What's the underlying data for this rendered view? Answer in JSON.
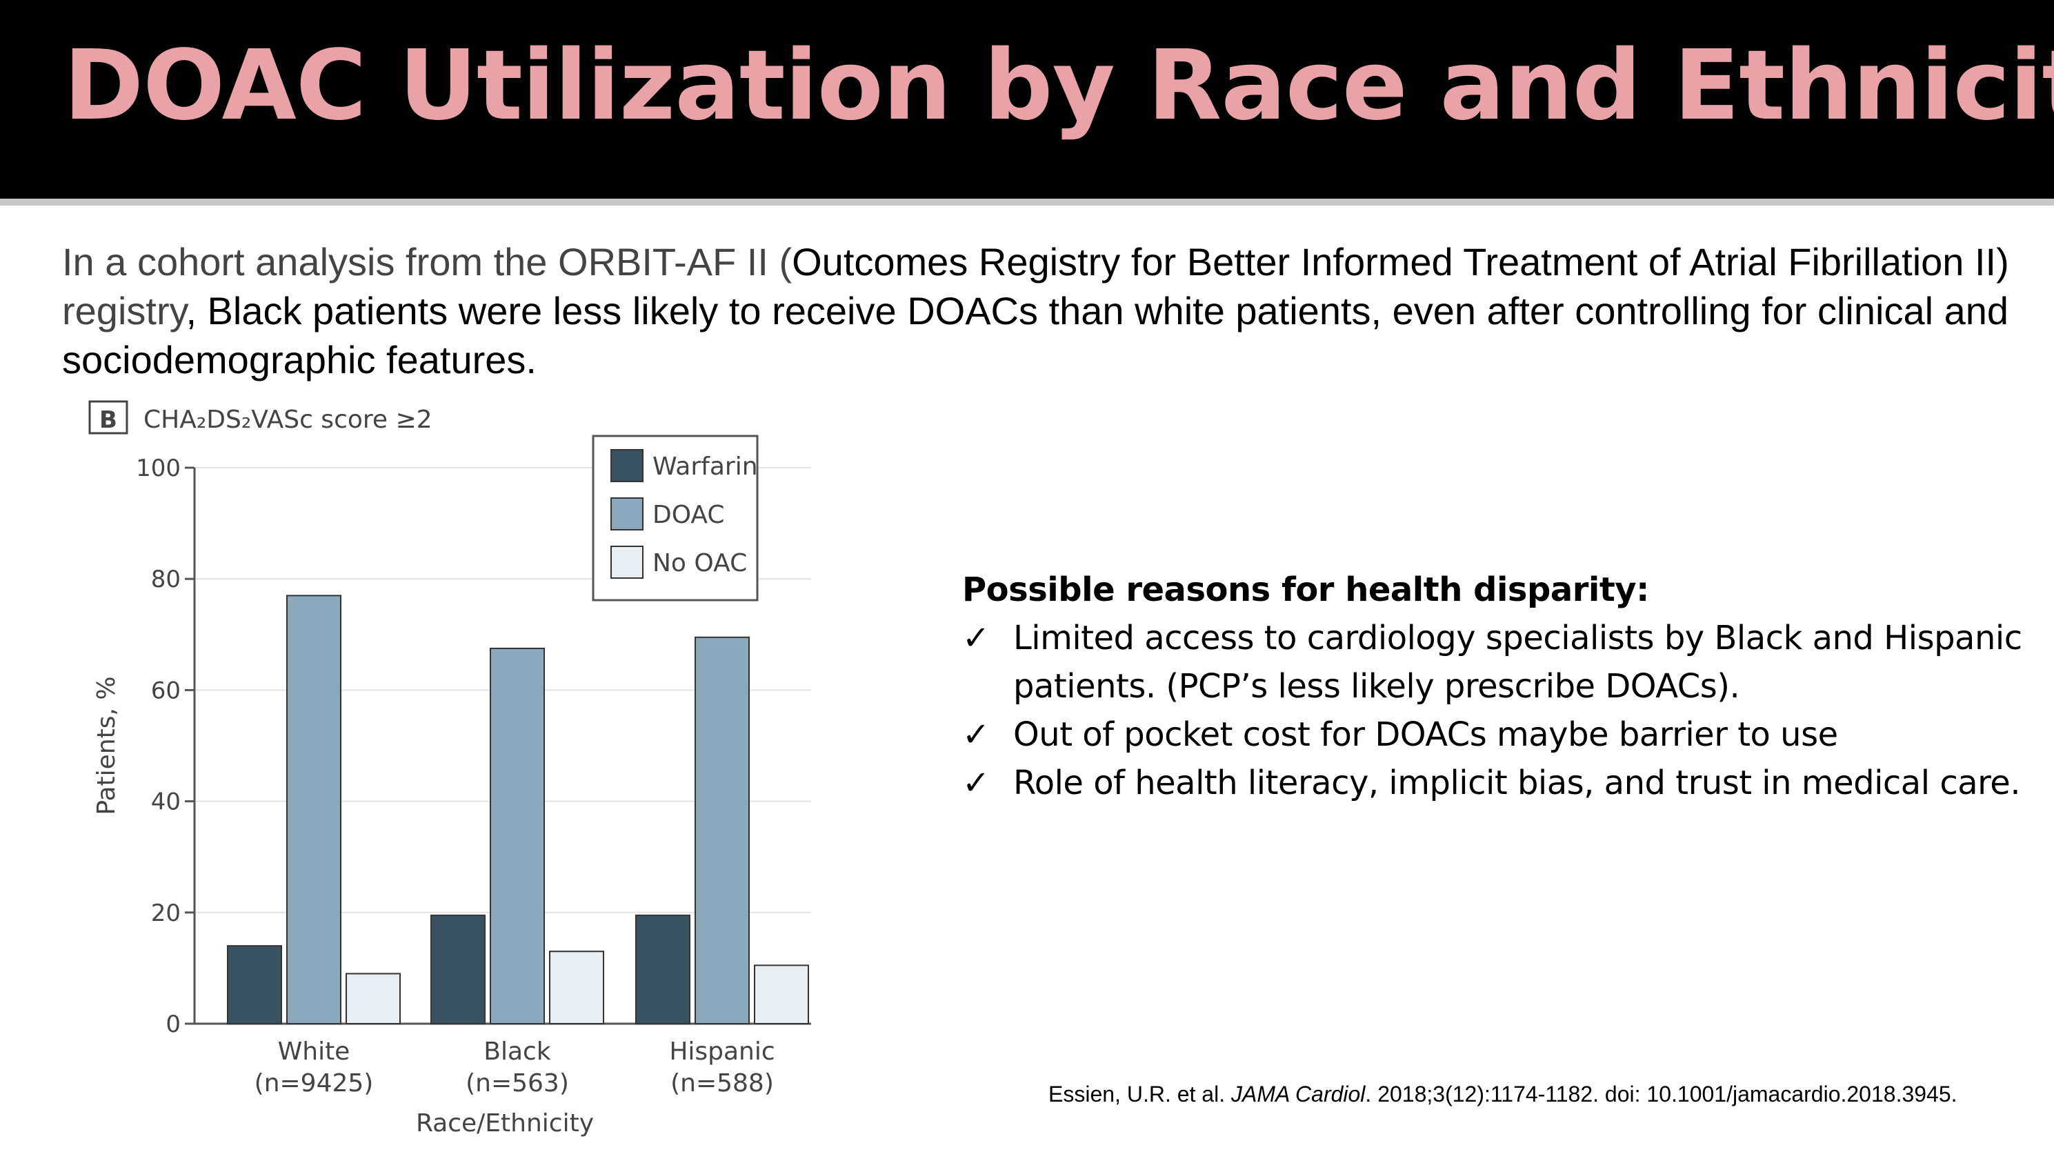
{
  "slide": {
    "title": "DOAC Utilization by Race and Ethnicity",
    "title_color": "#E8A2A8",
    "intro": {
      "part1": "In a cohort analysis from the ORBIT-AF II (",
      "part2": "Outcomes Registry for Better Informed Treatment of Atrial Fibrillation II) ",
      "part3": "registry",
      "part4": ", Black patients were less likely to receive DOACs than white patients, even after controlling for clinical and sociodemographic features."
    },
    "reasons": {
      "heading": "Possible reasons for health disparity:",
      "check_mark": "✓",
      "items": [
        "Limited access to cardiology specialists by Black and Hispanic patients. (PCP’s less likely prescribe DOACs).",
        "Out of pocket cost for DOACs maybe barrier to use",
        "Role of health literacy, implicit bias, and trust in medical care."
      ]
    },
    "citation": {
      "authors": "Essien, U.R. et al.",
      "journal": "JAMA Cardiol",
      "details": ". 2018;3(12):1174-1182. doi: 10.1001/jamacardio.2018.3945."
    }
  },
  "chart_data": {
    "type": "bar",
    "panel_label": "B",
    "panel_title": "CHA₂DS₂VASc score ≥2",
    "categories": [
      "White",
      "Black",
      "Hispanic"
    ],
    "category_sublabels": [
      "(n=9425)",
      "(n=563)",
      "(n=588)"
    ],
    "series": [
      {
        "name": "Warfarin",
        "color": "#3A5260",
        "values": [
          14,
          19.5,
          19.5
        ]
      },
      {
        "name": "DOAC",
        "color": "#8BA8BC",
        "values": [
          77,
          67.5,
          69.5
        ]
      },
      {
        "name": "No OAC",
        "color": "#E8EEF2",
        "values": [
          9,
          13,
          10.5
        ]
      }
    ],
    "xlabel": "Race/Ethnicity",
    "ylabel": "Patients, %",
    "ylim": [
      0,
      100
    ],
    "yticks": [
      0,
      20,
      40,
      60,
      80,
      100
    ],
    "grid": true,
    "legend_position": "top-right"
  }
}
